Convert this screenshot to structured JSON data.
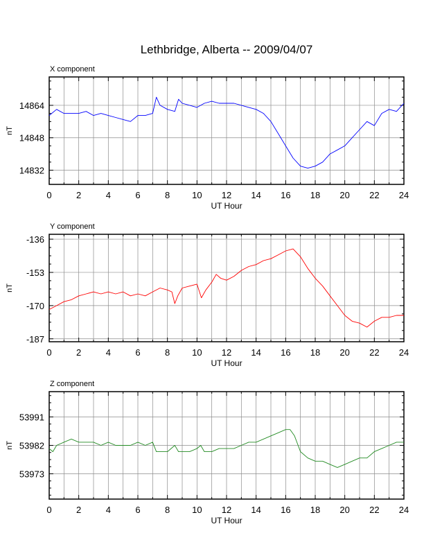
{
  "title": "Lethbridge, Alberta -- 2009/04/07",
  "chart_data": [
    {
      "type": "line",
      "panel_title": "X component",
      "xlabel": "UT Hour",
      "ylabel": "nT",
      "xlim": [
        0,
        24
      ],
      "ylim": [
        14825,
        14878
      ],
      "xticks": [
        "0",
        "2",
        "4",
        "6",
        "8",
        "10",
        "12",
        "14",
        "16",
        "18",
        "20",
        "22",
        "24"
      ],
      "yticks": [
        {
          "value": 14864,
          "label": "14864"
        },
        {
          "value": 14848,
          "label": "14848"
        },
        {
          "value": 14832,
          "label": "14832"
        }
      ],
      "grid": true,
      "color": "#0000ff",
      "x": [
        0,
        0.5,
        1,
        1.5,
        2,
        2.5,
        3,
        3.5,
        4,
        4.5,
        5,
        5.5,
        6,
        6.5,
        7,
        7.25,
        7.5,
        8,
        8.5,
        8.75,
        9,
        9.5,
        10,
        10.5,
        11,
        11.5,
        12,
        12.5,
        13,
        13.5,
        14,
        14.5,
        15,
        15.5,
        16,
        16.5,
        17,
        17.5,
        18,
        18.5,
        19,
        19.5,
        20,
        20.5,
        21,
        21.5,
        22,
        22.5,
        23,
        23.5,
        24
      ],
      "y": [
        14859,
        14862,
        14860,
        14860,
        14860,
        14861,
        14859,
        14860,
        14859,
        14858,
        14857,
        14856,
        14859,
        14859,
        14860,
        14868,
        14864,
        14862,
        14861,
        14867,
        14865,
        14864,
        14863,
        14865,
        14866,
        14865,
        14865,
        14865,
        14864,
        14863,
        14862,
        14860,
        14856,
        14850,
        14844,
        14838,
        14834,
        14833,
        14834,
        14836,
        14840,
        14842,
        14844,
        14848,
        14852,
        14856,
        14854,
        14860,
        14862,
        14861,
        14865
      ]
    },
    {
      "type": "line",
      "panel_title": "Y component",
      "xlabel": "UT Hour",
      "ylabel": "nT",
      "xlim": [
        0,
        24
      ],
      "ylim": [
        -188.5,
        -133.5
      ],
      "xticks": [
        "0",
        "2",
        "4",
        "6",
        "8",
        "10",
        "12",
        "14",
        "16",
        "18",
        "20",
        "22",
        "24"
      ],
      "yticks": [
        {
          "value": -136,
          "label": "-136"
        },
        {
          "value": -153,
          "label": "-153"
        },
        {
          "value": -170,
          "label": "-170"
        },
        {
          "value": -187,
          "label": "-187"
        }
      ],
      "grid": true,
      "color": "#ff0000",
      "x": [
        0,
        0.5,
        1,
        1.5,
        2,
        2.5,
        3,
        3.5,
        4,
        4.5,
        5,
        5.5,
        6,
        6.5,
        7,
        7.5,
        8,
        8.3,
        8.5,
        8.7,
        9,
        9.5,
        10,
        10.3,
        10.6,
        11,
        11.3,
        11.6,
        12,
        12.5,
        13,
        13.5,
        14,
        14.5,
        15,
        15.5,
        16,
        16.5,
        17,
        17.5,
        18,
        18.5,
        19,
        19.5,
        20,
        20.5,
        21,
        21.5,
        22,
        22.5,
        23,
        23.5,
        24
      ],
      "y": [
        -172,
        -170,
        -168,
        -167,
        -165,
        -164,
        -163,
        -164,
        -163,
        -164,
        -163,
        -165,
        -164,
        -165,
        -163,
        -161,
        -162,
        -163,
        -169,
        -165,
        -161,
        -160,
        -159,
        -166,
        -162,
        -158,
        -154,
        -156,
        -157,
        -155,
        -152,
        -150,
        -149,
        -147,
        -146,
        -144,
        -142,
        -141,
        -145,
        -151,
        -156,
        -160,
        -165,
        -170,
        -175,
        -178,
        -179,
        -181,
        -178,
        -176,
        -176,
        -175,
        -175
      ]
    },
    {
      "type": "line",
      "panel_title": "Z component",
      "xlabel": "UT Hour",
      "ylabel": "nT",
      "xlim": [
        0,
        24
      ],
      "ylim": [
        53965,
        53999
      ],
      "xticks": [
        "0",
        "2",
        "4",
        "6",
        "8",
        "10",
        "12",
        "14",
        "16",
        "18",
        "20",
        "22",
        "24"
      ],
      "yticks": [
        {
          "value": 53991,
          "label": "53991"
        },
        {
          "value": 53982,
          "label": "53982"
        },
        {
          "value": 53973,
          "label": "53973"
        }
      ],
      "grid": true,
      "color": "#228b22",
      "x": [
        0,
        0.25,
        0.5,
        1,
        1.5,
        2,
        2.5,
        3,
        3.5,
        4,
        4.5,
        5,
        5.5,
        6,
        6.5,
        7,
        7.25,
        7.5,
        8,
        8.5,
        8.75,
        9,
        9.5,
        10,
        10.25,
        10.5,
        11,
        11.5,
        12,
        12.5,
        13,
        13.5,
        14,
        14.5,
        15,
        15.5,
        16,
        16.3,
        16.6,
        17,
        17.5,
        18,
        18.5,
        19,
        19.5,
        20,
        20.5,
        21,
        21.5,
        22,
        22.5,
        23,
        23.5,
        24
      ],
      "y": [
        53981,
        53980,
        53982,
        53983,
        53984,
        53983,
        53983,
        53983,
        53982,
        53983,
        53982,
        53982,
        53982,
        53983,
        53982,
        53983,
        53980,
        53980,
        53980,
        53982,
        53980,
        53980,
        53980,
        53981,
        53982,
        53980,
        53980,
        53981,
        53981,
        53981,
        53982,
        53983,
        53983,
        53984,
        53985,
        53986,
        53987,
        53987,
        53985,
        53980,
        53978,
        53977,
        53977,
        53976,
        53975,
        53976,
        53977,
        53978,
        53978,
        53980,
        53981,
        53982,
        53983,
        53983
      ]
    }
  ]
}
